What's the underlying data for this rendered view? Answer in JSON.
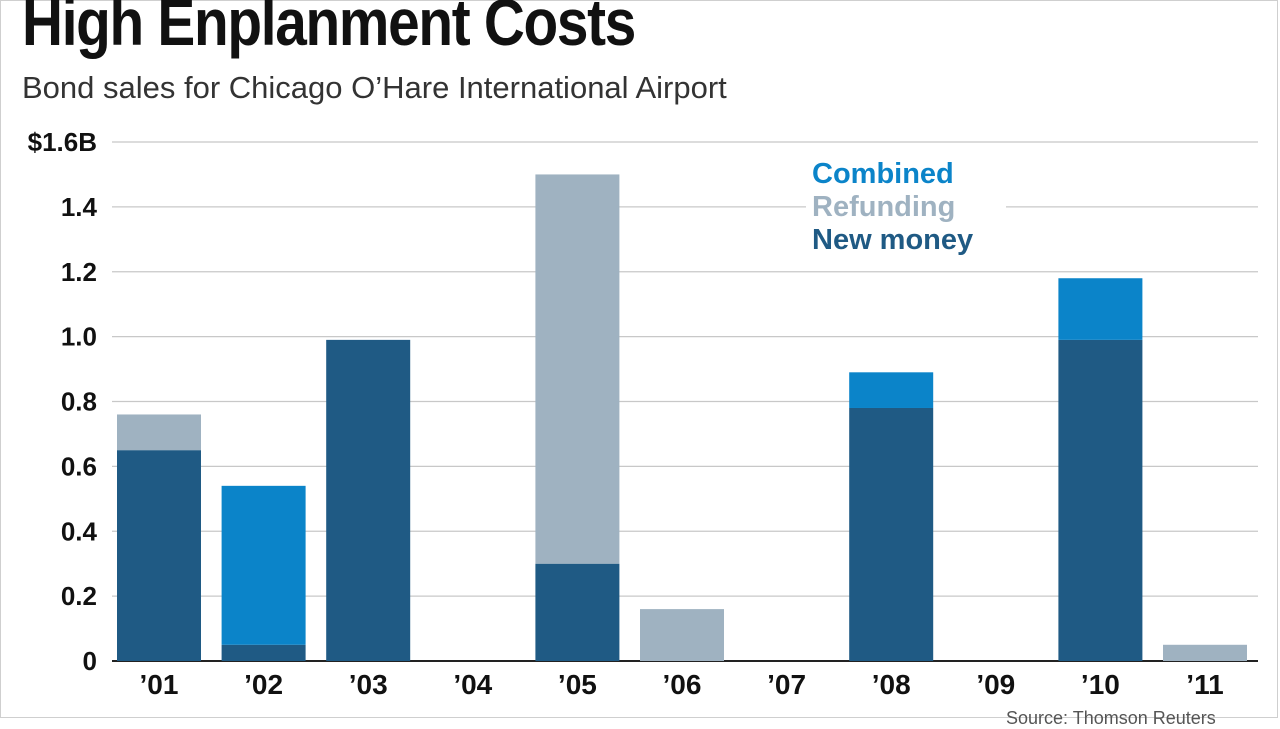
{
  "header": {
    "title": "High Enplanment Costs",
    "subtitle": "Bond sales for Chicago O’Hare International Airport",
    "source": "Source: Thomson Reuters"
  },
  "chart_data": {
    "type": "bar",
    "stacked": true,
    "title": "High Enplanment Costs",
    "subtitle": "Bond sales for Chicago O’Hare International Airport",
    "xlabel": "",
    "ylabel": "",
    "ylim": [
      0,
      1.6
    ],
    "y_ticks": [
      0,
      0.2,
      0.4,
      0.6,
      0.8,
      1.0,
      1.2,
      1.4,
      1.6
    ],
    "y_tick_labels": [
      "0",
      "0.2",
      "0.4",
      "0.6",
      "0.8",
      "1.0",
      "1.2",
      "1.4",
      "$1.6B"
    ],
    "grid": true,
    "legend_position": "top-right",
    "categories": [
      "’01",
      "’02",
      "’03",
      "’04",
      "’05",
      "’06",
      "’07",
      "’08",
      "’09",
      "’10",
      "’11"
    ],
    "series": [
      {
        "name": "New money",
        "color": "#1f5a84",
        "values": [
          0.65,
          0.05,
          0.99,
          0,
          0.3,
          0,
          0,
          0.78,
          0,
          0.99,
          0
        ]
      },
      {
        "name": "Refunding",
        "color": "#9fb2c1",
        "values": [
          0.11,
          0,
          0,
          0,
          1.2,
          0.16,
          0,
          0,
          0,
          0,
          0.05
        ]
      },
      {
        "name": "Combined",
        "color": "#0b84c9",
        "values": [
          0,
          0.49,
          0,
          0,
          0,
          0,
          0,
          0.11,
          0,
          0.19,
          0
        ]
      }
    ],
    "legend_order": [
      "Combined",
      "Refunding",
      "New money"
    ]
  }
}
